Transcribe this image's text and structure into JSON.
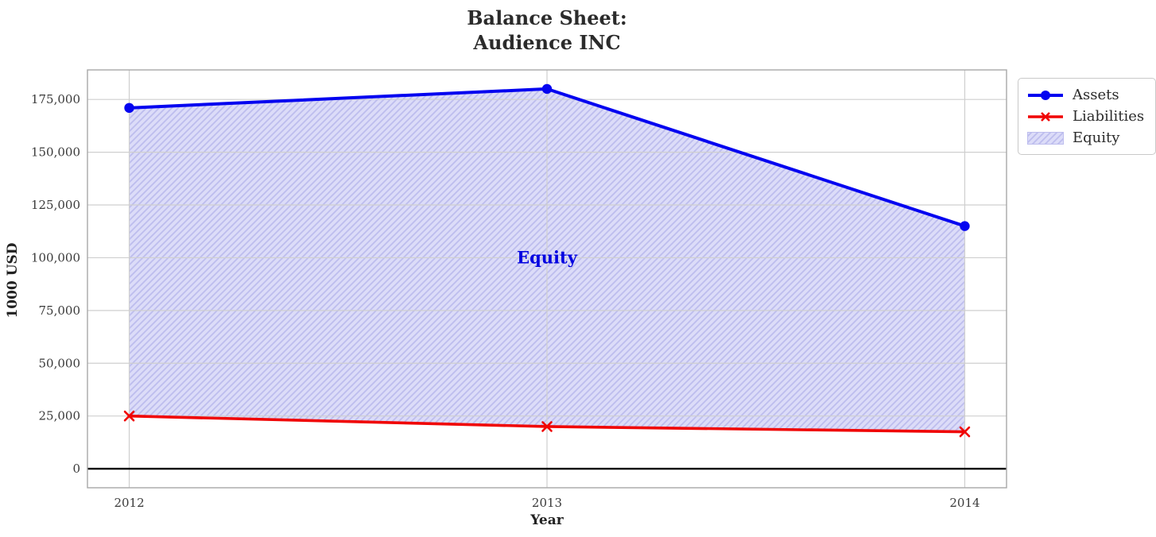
{
  "chart_data": {
    "type": "area",
    "title": "Balance Sheet:\nAudience INC",
    "title_lines": [
      "Balance Sheet:",
      "Audience INC"
    ],
    "xlabel": "Year",
    "ylabel": "1000 USD",
    "x": [
      2012,
      2013,
      2014
    ],
    "x_tick_labels": [
      "2012",
      "2013",
      "2014"
    ],
    "y_ticks": [
      0,
      25000,
      50000,
      75000,
      100000,
      125000,
      150000,
      175000
    ],
    "y_tick_labels": [
      "0",
      "25,000",
      "50,000",
      "75,000",
      "100,000",
      "125,000",
      "150,000",
      "175,000"
    ],
    "xlim": [
      2011.9,
      2014.1
    ],
    "ylim": [
      -9000,
      189000
    ],
    "grid": true,
    "zero_line": true,
    "series": [
      {
        "name": "Assets",
        "values": [
          171000,
          180000,
          115000
        ],
        "color": "#0404f0",
        "marker": "circle"
      },
      {
        "name": "Liabilities",
        "values": [
          25000,
          20000,
          17500
        ],
        "color": "#f00505",
        "marker": "x"
      }
    ],
    "fill_between": {
      "name": "Equity",
      "between": [
        "Assets",
        "Liabilities"
      ],
      "fill_color": "#dcdcf8",
      "hatch_color": "#bdbdee",
      "hatch": "//"
    },
    "annotation": {
      "text": "Equity",
      "color": "#0000e0",
      "x": 2013,
      "y": 100000
    },
    "legend": {
      "location": "upper right outside",
      "entries": [
        "Assets",
        "Liabilities",
        "Equity"
      ]
    },
    "colors": {
      "grid": "#cfcfcf",
      "spine": "#a8a8a8",
      "tick_text": "#3a3a3a",
      "zero_line": "#000000",
      "title_text": "#2b2b2b"
    }
  }
}
